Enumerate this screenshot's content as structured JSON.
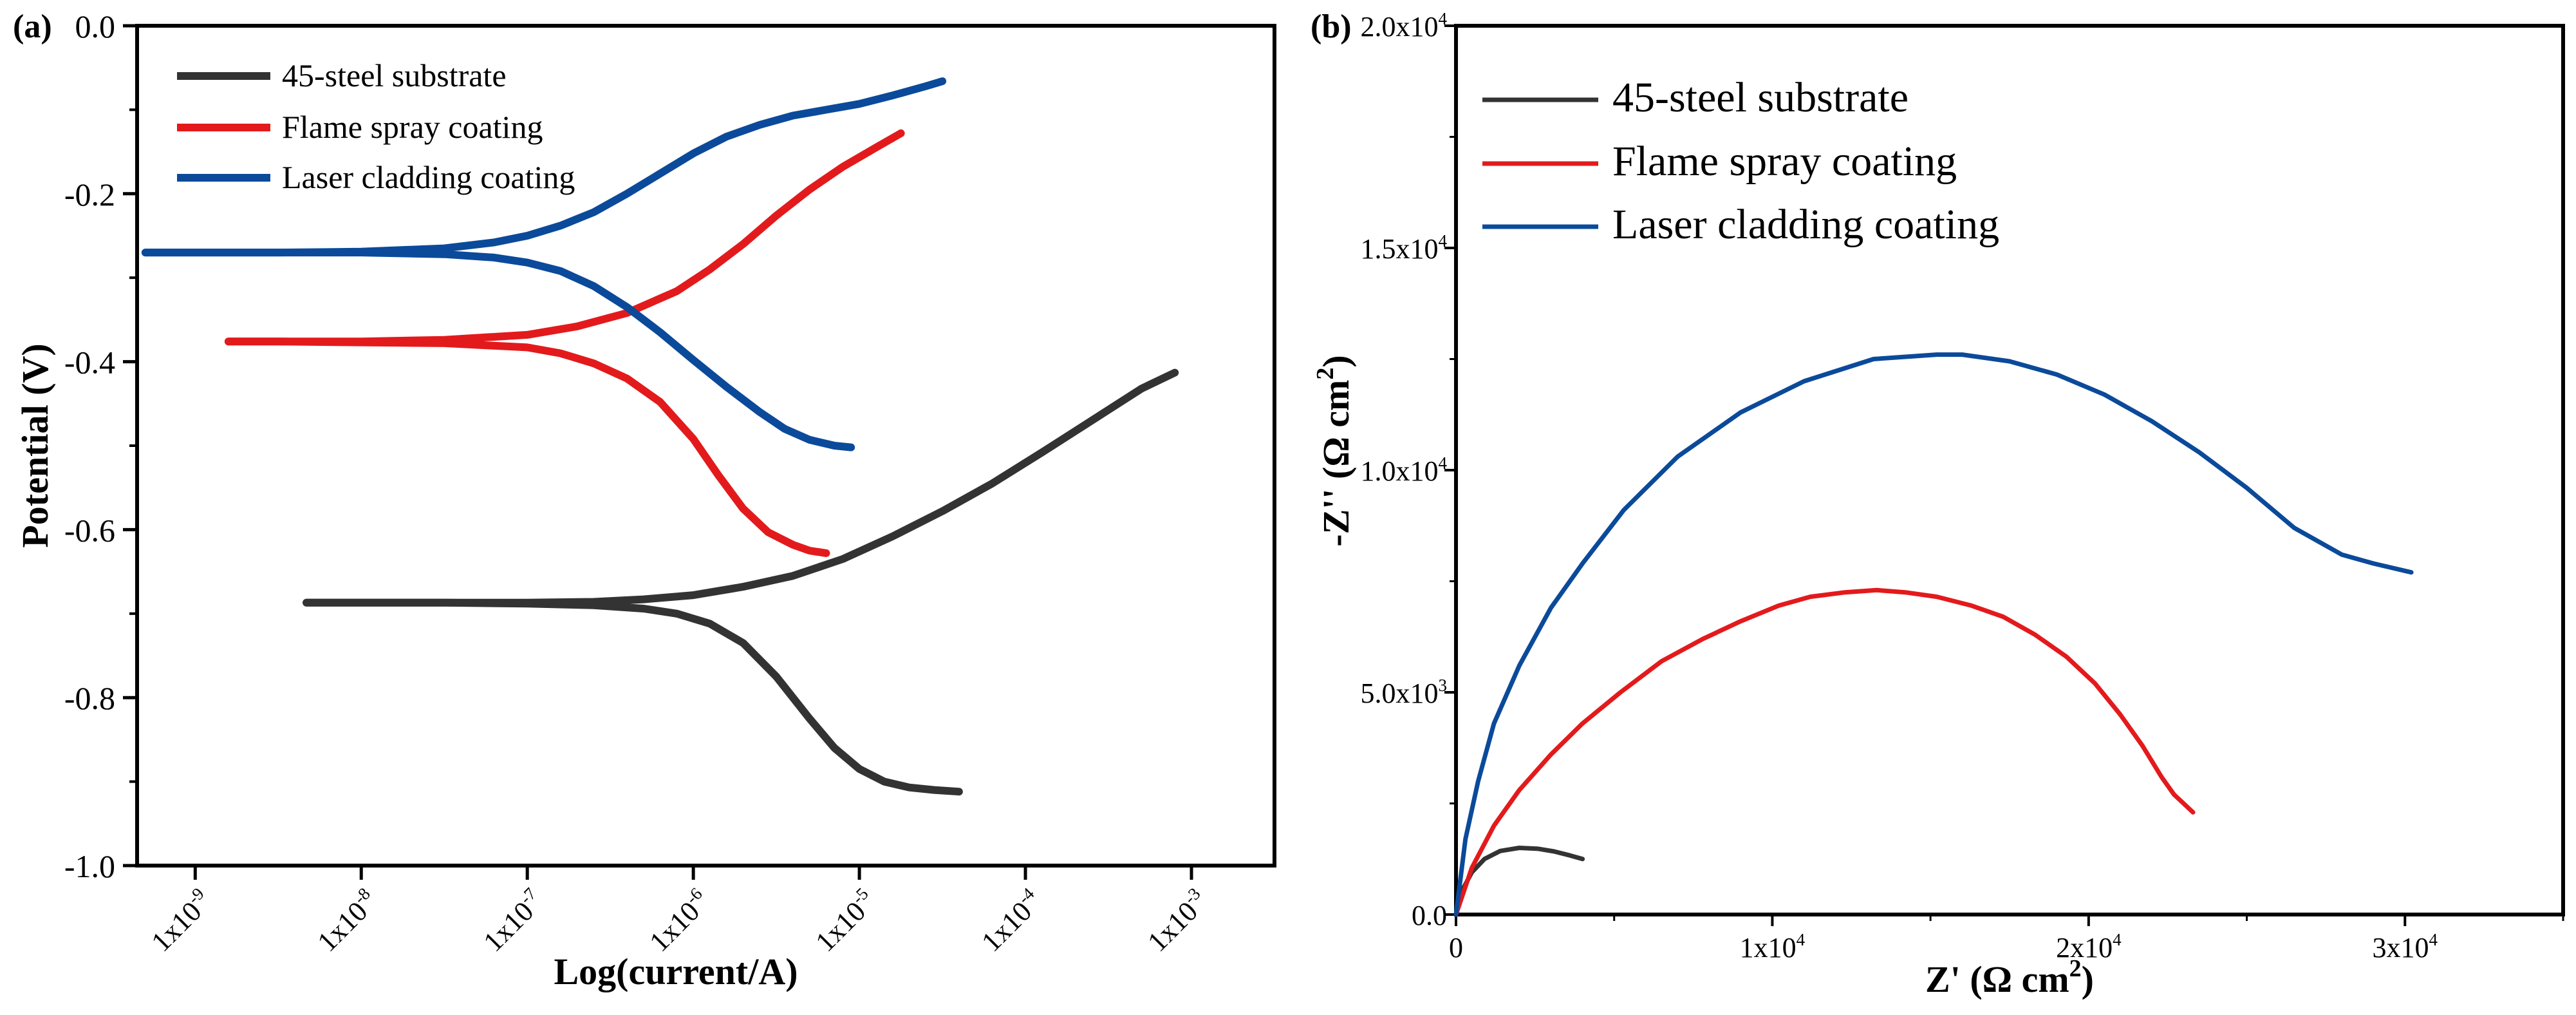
{
  "colors": {
    "substrate": "#333333",
    "flame": "#e31a1c",
    "laser": "#0b4a9a",
    "axis": "#000000"
  },
  "chart_data": [
    {
      "panel_label": "(a)",
      "type": "line",
      "xlabel": "Log(current/A)",
      "ylabel": "Potential (V)",
      "xscale": "log10",
      "xlim": [
        -9.35,
        -2.5
      ],
      "ylim": [
        -1.0,
        0.0
      ],
      "yticks": [
        0.0,
        -0.2,
        -0.4,
        -0.6,
        -0.8,
        -1.0
      ],
      "ytick_labels": [
        "0.0",
        "-0.2",
        "-0.4",
        "-0.6",
        "-0.8",
        "-1.0"
      ],
      "xticks": [
        -9,
        -8,
        -7,
        -6,
        -5,
        -4,
        -3
      ],
      "xtick_labels": [
        {
          "base": "1x10",
          "exp": "-9"
        },
        {
          "base": "1x10",
          "exp": "-8"
        },
        {
          "base": "1x10",
          "exp": "-7"
        },
        {
          "base": "1x10",
          "exp": "-6"
        },
        {
          "base": "1x10",
          "exp": "-5"
        },
        {
          "base": "1x10",
          "exp": "-4"
        },
        {
          "base": "1x10",
          "exp": "-3"
        }
      ],
      "legend": [
        "45-steel substrate",
        "Flame spray coating",
        "Laser cladding coating"
      ],
      "legend_position": "top-left",
      "series": [
        {
          "name": "45-steel substrate",
          "color_key": "substrate",
          "branches": [
            {
              "x": [
                -8.33,
                -8.0,
                -7.5,
                -7.0,
                -6.6,
                -6.3,
                -6.1,
                -5.9,
                -5.7,
                -5.5,
                -5.3,
                -5.15,
                -5.0,
                -4.85,
                -4.7,
                -4.55,
                -4.4
              ],
              "y": [
                -0.687,
                -0.687,
                -0.687,
                -0.688,
                -0.69,
                -0.694,
                -0.7,
                -0.712,
                -0.735,
                -0.775,
                -0.825,
                -0.86,
                -0.885,
                -0.9,
                -0.907,
                -0.91,
                -0.912
              ]
            },
            {
              "x": [
                -8.33,
                -8.0,
                -7.5,
                -7.0,
                -6.6,
                -6.3,
                -6.0,
                -5.7,
                -5.4,
                -5.1,
                -4.8,
                -4.5,
                -4.2,
                -3.9,
                -3.6,
                -3.3,
                -3.1
              ],
              "y": [
                -0.687,
                -0.687,
                -0.687,
                -0.687,
                -0.686,
                -0.683,
                -0.678,
                -0.668,
                -0.655,
                -0.635,
                -0.608,
                -0.578,
                -0.545,
                -0.508,
                -0.47,
                -0.432,
                -0.413
              ]
            }
          ]
        },
        {
          "name": "Flame spray coating",
          "color_key": "flame",
          "branches": [
            {
              "x": [
                -8.8,
                -8.5,
                -8.0,
                -7.5,
                -7.0,
                -6.8,
                -6.6,
                -6.4,
                -6.2,
                -6.0,
                -5.85,
                -5.7,
                -5.55,
                -5.4,
                -5.3,
                -5.2
              ],
              "y": [
                -0.376,
                -0.376,
                -0.377,
                -0.378,
                -0.383,
                -0.39,
                -0.402,
                -0.42,
                -0.448,
                -0.492,
                -0.535,
                -0.575,
                -0.603,
                -0.618,
                -0.625,
                -0.628
              ]
            },
            {
              "x": [
                -8.8,
                -8.0,
                -7.5,
                -7.0,
                -6.7,
                -6.4,
                -6.1,
                -5.9,
                -5.7,
                -5.5,
                -5.3,
                -5.1,
                -4.9,
                -4.75
              ],
              "y": [
                -0.376,
                -0.376,
                -0.374,
                -0.368,
                -0.358,
                -0.342,
                -0.316,
                -0.29,
                -0.26,
                -0.226,
                -0.195,
                -0.168,
                -0.145,
                -0.128
              ]
            }
          ]
        },
        {
          "name": "Laser cladding coating",
          "color_key": "laser",
          "branches": [
            {
              "x": [
                -9.3,
                -9.0,
                -8.5,
                -8.0,
                -7.5,
                -7.2,
                -7.0,
                -6.8,
                -6.6,
                -6.4,
                -6.2,
                -6.0,
                -5.8,
                -5.6,
                -5.45,
                -5.3,
                -5.15,
                -5.05
              ],
              "y": [
                -0.27,
                -0.27,
                -0.27,
                -0.27,
                -0.272,
                -0.276,
                -0.282,
                -0.292,
                -0.31,
                -0.335,
                -0.365,
                -0.398,
                -0.43,
                -0.46,
                -0.48,
                -0.493,
                -0.5,
                -0.502
              ]
            },
            {
              "x": [
                -9.3,
                -8.5,
                -8.0,
                -7.5,
                -7.2,
                -7.0,
                -6.8,
                -6.6,
                -6.4,
                -6.2,
                -6.0,
                -5.8,
                -5.6,
                -5.4,
                -5.2,
                -5.0,
                -4.8,
                -4.6,
                -4.5
              ],
              "y": [
                -0.27,
                -0.27,
                -0.269,
                -0.265,
                -0.258,
                -0.25,
                -0.238,
                -0.222,
                -0.2,
                -0.176,
                -0.152,
                -0.132,
                -0.118,
                -0.107,
                -0.1,
                -0.093,
                -0.083,
                -0.072,
                -0.066
              ]
            }
          ]
        }
      ]
    },
    {
      "panel_label": "(b)",
      "type": "line",
      "xlabel": "Z' (Ω cm²)",
      "xlabel_main": "Z' (Ω cm",
      "xlabel_sup": "2",
      "xlabel_close": ")",
      "ylabel": "-Z'' (Ω cm²)",
      "ylabel_main": "-Z'' (Ω cm",
      "ylabel_sup": "2",
      "ylabel_close": ")",
      "xlim": [
        0,
        35000
      ],
      "ylim": [
        0,
        20000
      ],
      "xticks": [
        0,
        10000,
        20000,
        30000
      ],
      "xtick_labels": [
        {
          "base": "0",
          "exp": ""
        },
        {
          "base": "1x10",
          "exp": "4"
        },
        {
          "base": "2x10",
          "exp": "4"
        },
        {
          "base": "3x10",
          "exp": "4"
        }
      ],
      "yticks": [
        0,
        5000,
        10000,
        15000,
        20000
      ],
      "ytick_labels": [
        {
          "base": "0.0",
          "exp": ""
        },
        {
          "base": "5.0x10",
          "exp": "3"
        },
        {
          "base": "1.0x10",
          "exp": "4"
        },
        {
          "base": "1.5x10",
          "exp": "4"
        },
        {
          "base": "2.0x10",
          "exp": "4"
        }
      ],
      "legend": [
        "45-steel substrate",
        "Flame spray coating",
        "Laser cladding coating"
      ],
      "legend_position": "top-left",
      "series": [
        {
          "name": "45-steel substrate",
          "color_key": "substrate",
          "x": [
            0,
            200,
            500,
            900,
            1400,
            2000,
            2600,
            3100,
            3600,
            4000
          ],
          "y": [
            0,
            550,
            950,
            1250,
            1430,
            1500,
            1480,
            1420,
            1330,
            1250
          ]
        },
        {
          "name": "Flame spray coating",
          "color_key": "flame",
          "x": [
            0,
            500,
            1200,
            2000,
            3000,
            4000,
            5200,
            6500,
            7800,
            9000,
            10200,
            11200,
            12300,
            13300,
            14200,
            15200,
            16300,
            17300,
            18300,
            19300,
            20200,
            21000,
            21700,
            22300,
            22700,
            23000,
            23300
          ],
          "y": [
            0,
            1050,
            2000,
            2800,
            3600,
            4300,
            5000,
            5700,
            6200,
            6600,
            6950,
            7150,
            7250,
            7300,
            7250,
            7150,
            6950,
            6700,
            6300,
            5800,
            5200,
            4500,
            3800,
            3100,
            2700,
            2500,
            2300
          ]
        },
        {
          "name": "Laser cladding coating",
          "color_key": "laser",
          "x": [
            0,
            300,
            700,
            1200,
            2000,
            3000,
            4000,
            5300,
            7000,
            9000,
            11000,
            13200,
            15200,
            16000,
            17500,
            19000,
            20500,
            22000,
            23500,
            25000,
            26500,
            28000,
            29000,
            30200
          ],
          "y": [
            0,
            1700,
            3000,
            4300,
            5600,
            6900,
            7900,
            9100,
            10300,
            11300,
            12000,
            12500,
            12600,
            12600,
            12450,
            12150,
            11700,
            11100,
            10400,
            9600,
            8700,
            8100,
            7900,
            7700
          ]
        }
      ]
    }
  ]
}
